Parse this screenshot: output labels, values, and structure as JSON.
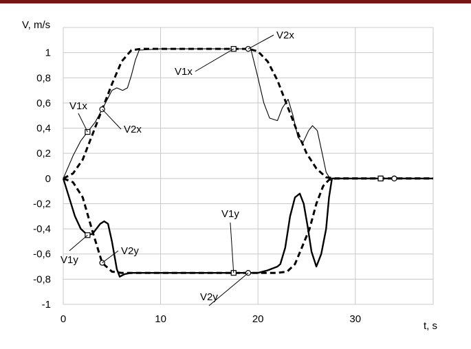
{
  "colors": {
    "top_bar": "#7a1515",
    "grid": "#c8c8c8",
    "series": "#000000"
  },
  "chart_data": {
    "type": "line",
    "xlabel": "t, s",
    "ylabel": "V, m/s",
    "xlim": [
      0,
      38
    ],
    "ylim": [
      -1,
      1.2
    ],
    "x_ticks": [
      0,
      10,
      20,
      30
    ],
    "x_tick_labels": [
      "0",
      "10",
      "20",
      "30"
    ],
    "y_ticks": [
      1,
      0.8,
      0.6,
      0.4,
      0.2,
      0,
      -0.2,
      -0.4,
      -0.6,
      -0.8,
      -1
    ],
    "y_tick_labels": [
      "1",
      "0,8",
      "0,6",
      "0,4",
      "0,2",
      "0",
      "-0,2",
      "-0,4",
      "-0,6",
      "-0,8",
      "-1"
    ],
    "grid": true,
    "legend": "none",
    "series": [
      {
        "name": "V1x",
        "style": "thin-solid",
        "marker": "square",
        "x": [
          0,
          1,
          1.8,
          2.5,
          3.3,
          4.2,
          5,
          5.5,
          6.1,
          6.6,
          7,
          7.4,
          7.8,
          10,
          15,
          17.5,
          18.5,
          19.3,
          20,
          20.6,
          21.2,
          22,
          22.5,
          23.1,
          23.6,
          24.1,
          24.6,
          25.2,
          25.6,
          26.1,
          26.6,
          27,
          27.4,
          28,
          30,
          32.6,
          34,
          38
        ],
        "y": [
          0,
          0.18,
          0.3,
          0.37,
          0.45,
          0.58,
          0.7,
          0.72,
          0.7,
          0.72,
          0.82,
          0.94,
          1.02,
          1.03,
          1.03,
          1.03,
          1.03,
          1.02,
          0.8,
          0.6,
          0.48,
          0.46,
          0.56,
          0.63,
          0.5,
          0.33,
          0.28,
          0.38,
          0.42,
          0.38,
          0.2,
          0.05,
          0,
          0,
          0,
          0,
          0,
          0
        ],
        "marker_x": [
          2.5,
          17.5,
          32.6
        ]
      },
      {
        "name": "V2x",
        "style": "thick-dashed",
        "marker": "circle",
        "x": [
          0,
          1,
          2,
          3,
          4,
          5,
          6,
          7,
          8,
          10,
          15,
          19,
          20,
          21,
          22,
          23,
          24,
          25,
          26,
          27,
          28,
          30,
          34,
          38
        ],
        "y": [
          0,
          0.04,
          0.15,
          0.35,
          0.55,
          0.75,
          0.93,
          1.02,
          1.03,
          1.03,
          1.03,
          1.03,
          1.01,
          0.93,
          0.78,
          0.58,
          0.38,
          0.2,
          0.08,
          0.01,
          0,
          0,
          0,
          0
        ],
        "marker_x": [
          4,
          19,
          34
        ]
      },
      {
        "name": "V1y",
        "style": "thick-solid",
        "marker": "square",
        "x": [
          0,
          0.6,
          1.2,
          1.8,
          2.5,
          3,
          3.4,
          3.8,
          4.2,
          4.6,
          5,
          5.5,
          5.8,
          6.3,
          7,
          10,
          15,
          17.5,
          20,
          21,
          22,
          22.3,
          22.8,
          23.3,
          23.8,
          24.3,
          24.7,
          25.1,
          25.5,
          26,
          26.5,
          27,
          27.3,
          27.6,
          28,
          30,
          32.6,
          38
        ],
        "y": [
          0,
          -0.15,
          -0.3,
          -0.4,
          -0.45,
          -0.44,
          -0.4,
          -0.36,
          -0.34,
          -0.36,
          -0.5,
          -0.72,
          -0.78,
          -0.76,
          -0.75,
          -0.75,
          -0.75,
          -0.75,
          -0.75,
          -0.73,
          -0.7,
          -0.68,
          -0.55,
          -0.3,
          -0.15,
          -0.12,
          -0.2,
          -0.38,
          -0.58,
          -0.7,
          -0.6,
          -0.4,
          -0.15,
          0,
          0,
          0,
          0,
          0
        ],
        "marker_x": [
          2.5,
          17.5,
          32.6
        ]
      },
      {
        "name": "V2y",
        "style": "thick-dashed",
        "marker": "circle",
        "x": [
          0,
          1,
          2,
          3,
          4,
          5,
          6,
          7,
          8,
          10,
          15,
          19,
          20,
          21,
          22,
          23,
          23.8,
          24.5,
          25.3,
          26,
          26.7,
          27.3,
          28,
          30,
          34,
          38
        ],
        "y": [
          0,
          -0.03,
          -0.15,
          -0.42,
          -0.67,
          -0.74,
          -0.75,
          -0.75,
          -0.75,
          -0.75,
          -0.75,
          -0.75,
          -0.75,
          -0.75,
          -0.75,
          -0.74,
          -0.68,
          -0.55,
          -0.4,
          -0.2,
          -0.06,
          -0.01,
          0,
          0,
          0,
          0
        ],
        "marker_x": [
          4,
          19,
          34
        ]
      }
    ],
    "annotations": [
      {
        "text": "V1x",
        "target_series": "V1x",
        "target_x": 2.5
      },
      {
        "text": "V2x",
        "target_series": "V2x",
        "target_x": 4
      },
      {
        "text": "V1x",
        "target_series": "V1x",
        "target_x": 17.5
      },
      {
        "text": "V2x",
        "target_series": "V2x",
        "target_x": 19
      },
      {
        "text": "V1y",
        "target_series": "V1y",
        "target_x": 2.5
      },
      {
        "text": "V2y",
        "target_series": "V2y",
        "target_x": 4
      },
      {
        "text": "V1y",
        "target_series": "V1y",
        "target_x": 17.5
      },
      {
        "text": "V2y",
        "target_series": "V2y",
        "target_x": 19
      }
    ]
  }
}
